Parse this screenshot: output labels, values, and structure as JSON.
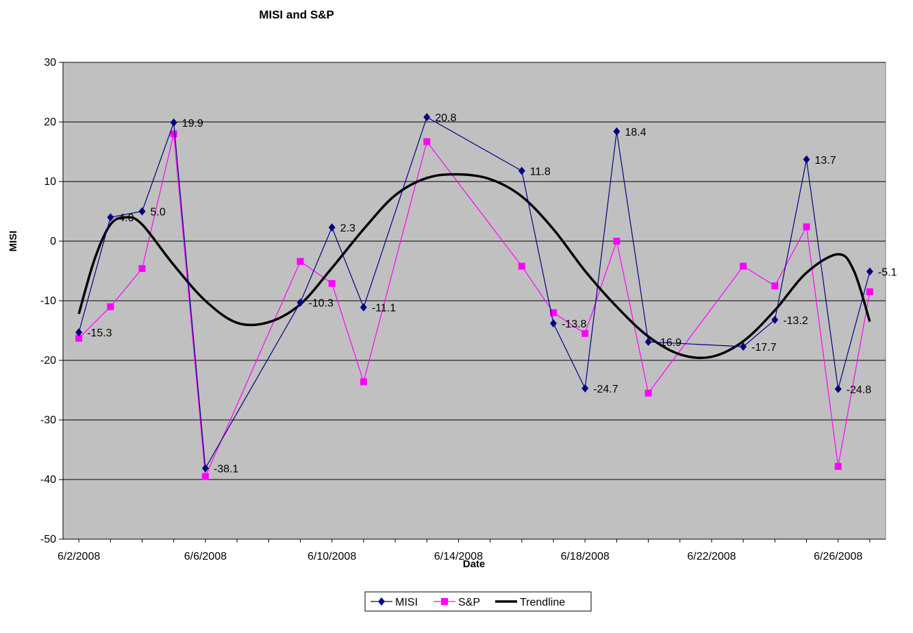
{
  "chart_data": {
    "type": "line",
    "title": "MISI and S&P",
    "xlabel": "Date",
    "ylabel": "MISI",
    "ylim": [
      -50,
      30
    ],
    "yticks": [
      30,
      20,
      10,
      0,
      -10,
      -20,
      -30,
      -40,
      -50
    ],
    "xlim": [
      "2008-06-02",
      "2008-06-27"
    ],
    "xticks": [
      "6/2/2008",
      "6/6/2008",
      "6/10/2008",
      "6/14/2008",
      "6/18/2008",
      "6/22/2008",
      "6/26/2008"
    ],
    "grid": "horizontal",
    "legend": "bottom",
    "background": "#c0c0c0",
    "series": [
      {
        "name": "MISI",
        "color": "#000080",
        "marker": "diamond",
        "x": [
          "2008-06-02",
          "2008-06-03",
          "2008-06-04",
          "2008-06-05",
          "2008-06-06",
          "2008-06-09",
          "2008-06-10",
          "2008-06-11",
          "2008-06-13",
          "2008-06-16",
          "2008-06-17",
          "2008-06-18",
          "2008-06-19",
          "2008-06-20",
          "2008-06-23",
          "2008-06-24",
          "2008-06-25",
          "2008-06-26",
          "2008-06-27"
        ],
        "values": [
          -15.3,
          4.0,
          5.0,
          19.9,
          -38.1,
          -10.3,
          2.3,
          -11.1,
          20.8,
          11.8,
          -13.8,
          -24.7,
          18.4,
          -16.9,
          -17.7,
          -13.2,
          13.7,
          -24.8,
          -5.1
        ],
        "labels": [
          "-15.3",
          "4.0",
          "5.0",
          "19.9",
          "-38.1",
          "-10.3",
          "2.3",
          "-11.1",
          "20.8",
          "11.8",
          "-13.8",
          "-24.7",
          "18.4",
          "-16.9",
          "-17.7",
          "-13.2",
          "13.7",
          "-24.8",
          "-5.1"
        ]
      },
      {
        "name": "S&P",
        "color": "#ff00ff",
        "marker": "square",
        "x": [
          "2008-06-02",
          "2008-06-03",
          "2008-06-04",
          "2008-06-05",
          "2008-06-06",
          "2008-06-09",
          "2008-06-10",
          "2008-06-11",
          "2008-06-13",
          "2008-06-16",
          "2008-06-17",
          "2008-06-18",
          "2008-06-19",
          "2008-06-20",
          "2008-06-23",
          "2008-06-24",
          "2008-06-25",
          "2008-06-26",
          "2008-06-27"
        ],
        "values": [
          -16.3,
          -11.0,
          -4.6,
          18.0,
          -39.5,
          -3.4,
          -7.1,
          -23.6,
          16.7,
          -4.2,
          -12.0,
          -15.5,
          0.0,
          -25.5,
          -4.2,
          -7.5,
          2.4,
          -37.8,
          -8.5
        ]
      },
      {
        "name": "Trendline",
        "color": "#000000",
        "marker": "none",
        "x": [
          "2008-06-02",
          "2008-06-02.5",
          "2008-06-03",
          "2008-06-03.5",
          "2008-06-04",
          "2008-06-05",
          "2008-06-06",
          "2008-06-07",
          "2008-06-08",
          "2008-06-09",
          "2008-06-10",
          "2008-06-11",
          "2008-06-12",
          "2008-06-13",
          "2008-06-14",
          "2008-06-15",
          "2008-06-16",
          "2008-06-17",
          "2008-06-18",
          "2008-06-19",
          "2008-06-20",
          "2008-06-21",
          "2008-06-22",
          "2008-06-23",
          "2008-06-24",
          "2008-06-25",
          "2008-06-26",
          "2008-06-26.5",
          "2008-06-27"
        ],
        "values": [
          -12.2,
          -3.0,
          2.8,
          4.0,
          2.8,
          -4.0,
          -10.0,
          -13.7,
          -13.6,
          -10.6,
          -4.5,
          2.0,
          7.7,
          10.6,
          11.2,
          10.4,
          7.5,
          2.0,
          -5.0,
          -11.0,
          -16.0,
          -19.0,
          -19.4,
          -16.8,
          -11.6,
          -5.3,
          -2.2,
          -5.0,
          -13.5
        ]
      }
    ]
  }
}
